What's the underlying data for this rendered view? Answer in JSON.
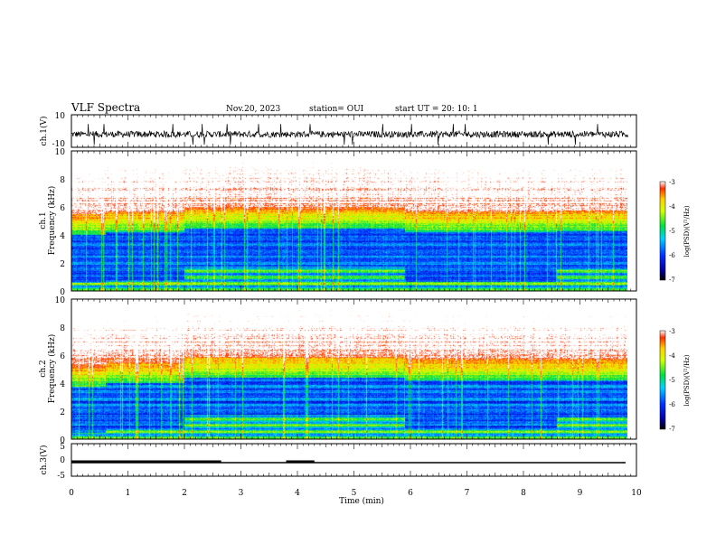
{
  "header": {
    "title": "VLF Spectra",
    "date": "Nov.20, 2023",
    "station": "station= OUI",
    "start": "start  UT =   20: 10: 1"
  },
  "chart_data": [
    {
      "type": "line",
      "panel": "ch1-waveform",
      "ylabel": "ch.1(V)",
      "ylim": [
        -10,
        10
      ],
      "yticks": [
        "10",
        "-10"
      ],
      "x_range": [
        0,
        9.85
      ],
      "baseline": -2,
      "amplitude": 4,
      "color": "#000000"
    },
    {
      "type": "heatmap",
      "panel": "ch1-spectrogram",
      "ylabel": "ch.1\nFrequency (kHz)",
      "ylim": [
        0,
        10
      ],
      "yticks": [
        "0",
        "2",
        "4",
        "6",
        "8",
        "10"
      ],
      "x_range": [
        0,
        9.85
      ],
      "colorbar": {
        "label": "log(PSD)(V²/Hz)",
        "range": [
          -7,
          -3
        ],
        "ticks": [
          "-3",
          "-4",
          "-5",
          "-6",
          "-7"
        ]
      },
      "segments": [
        {
          "t": [
            0,
            0.6
          ],
          "quiet_band_khz": [
            0.6,
            4.0
          ]
        },
        {
          "t": [
            0.6,
            2.0
          ],
          "quiet_band_khz": [
            0.8,
            4.2
          ]
        },
        {
          "t": [
            2.0,
            5.9
          ],
          "quiet_band_khz": [
            1.8,
            4.5
          ]
        },
        {
          "t": [
            5.9,
            8.6
          ],
          "quiet_band_khz": [
            0.7,
            4.2
          ]
        },
        {
          "t": [
            8.6,
            9.85
          ],
          "quiet_band_khz": [
            1.6,
            4.3
          ]
        }
      ]
    },
    {
      "type": "heatmap",
      "panel": "ch2-spectrogram",
      "ylabel": "ch.2\nFrequency (kHz)",
      "ylim": [
        0,
        10
      ],
      "yticks": [
        "0",
        "2",
        "4",
        "6",
        "8",
        "10"
      ],
      "x_range": [
        0,
        9.85
      ],
      "colorbar": {
        "label": "log(PSD)(V²/Hz)",
        "range": [
          -7,
          -3
        ],
        "ticks": [
          "-3",
          "-4",
          "-5",
          "-6",
          "-7"
        ]
      },
      "segments": [
        {
          "t": [
            0,
            0.6
          ],
          "quiet_band_khz": [
            0.5,
            3.8
          ]
        },
        {
          "t": [
            0.6,
            2.0
          ],
          "quiet_band_khz": [
            0.8,
            4.0
          ]
        },
        {
          "t": [
            2.0,
            5.9
          ],
          "quiet_band_khz": [
            1.8,
            4.4
          ]
        },
        {
          "t": [
            5.9,
            8.6
          ],
          "quiet_band_khz": [
            0.8,
            4.2
          ]
        },
        {
          "t": [
            8.6,
            9.85
          ],
          "quiet_band_khz": [
            1.6,
            4.2
          ]
        }
      ]
    },
    {
      "type": "line",
      "panel": "ch3-signal",
      "ylabel": "ch.3(V)",
      "ylim": [
        -5,
        5
      ],
      "yticks": [
        "5",
        "0",
        "-5"
      ],
      "baseline": 0,
      "x_range": [
        0,
        9.85
      ],
      "on_intervals": [
        [
          0,
          2.65
        ],
        [
          3.8,
          4.3
        ]
      ]
    }
  ],
  "xaxis": {
    "label": "Time (min)",
    "range": [
      0,
      10
    ],
    "ticks": [
      "0",
      "1",
      "2",
      "3",
      "4",
      "5",
      "6",
      "7",
      "8",
      "9",
      "10"
    ]
  }
}
